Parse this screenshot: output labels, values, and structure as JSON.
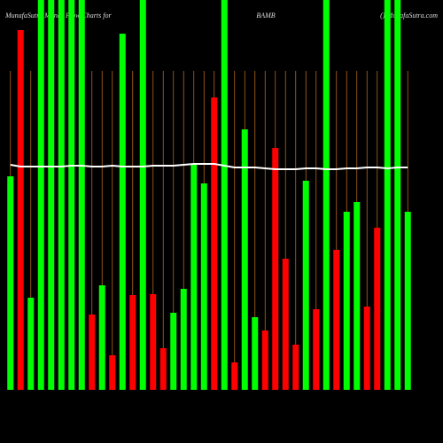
{
  "chart_data": {
    "type": "bar",
    "title_left": "MunafaSutra Money Flow Charts for",
    "title_center": "BAMB",
    "title_right": "() MunafaSutra.com",
    "categories": [
      null,
      null,
      null,
      null,
      null,
      null,
      null,
      null,
      null,
      null,
      null,
      null,
      null,
      null,
      null,
      null,
      null,
      null,
      null,
      null,
      null,
      null,
      null,
      null,
      null,
      null,
      null,
      null,
      null,
      null,
      null,
      null,
      null,
      null,
      null,
      null,
      null,
      null,
      null,
      null
    ],
    "values": [
      241,
      406,
      104,
      440,
      440,
      440,
      440,
      440,
      85,
      118,
      39,
      402,
      107,
      440,
      108,
      47,
      87,
      114,
      254,
      233,
      330,
      440,
      31,
      294,
      82,
      67,
      273,
      148,
      51,
      236,
      91,
      440,
      158,
      201,
      212,
      94,
      183,
      440,
      440,
      201
    ],
    "colors": [
      "#00ff00",
      "#ff0000",
      "#00ff00",
      "#00ff00",
      "#00ff00",
      "#00ff00",
      "#00ff00",
      "#00ff00",
      "#ff0000",
      "#00ff00",
      "#ff0000",
      "#00ff00",
      "#ff0000",
      "#00ff00",
      "#ff0000",
      "#ff0000",
      "#00ff00",
      "#00ff00",
      "#00ff00",
      "#00ff00",
      "#ff0000",
      "#00ff00",
      "#ff0000",
      "#00ff00",
      "#00ff00",
      "#ff0000",
      "#ff0000",
      "#ff0000",
      "#ff0000",
      "#00ff00",
      "#ff0000",
      "#00ff00",
      "#ff0000",
      "#00ff00",
      "#00ff00",
      "#ff0000",
      "#ff0000",
      "#00ff00",
      "#00ff00",
      "#00ff00"
    ],
    "line": {
      "color": "#ffffff",
      "values": [
        254,
        252,
        252,
        252,
        252,
        252,
        253,
        253,
        252,
        252,
        253,
        252,
        252,
        252,
        253,
        253,
        253,
        254,
        255,
        255,
        255,
        253,
        251,
        251,
        251,
        250,
        249,
        249,
        249,
        250,
        250,
        249,
        249,
        250,
        250,
        251,
        251,
        250,
        251,
        251
      ]
    },
    "grid": true,
    "grid_color": "#b5651d",
    "ylim": [
      0,
      440
    ]
  }
}
